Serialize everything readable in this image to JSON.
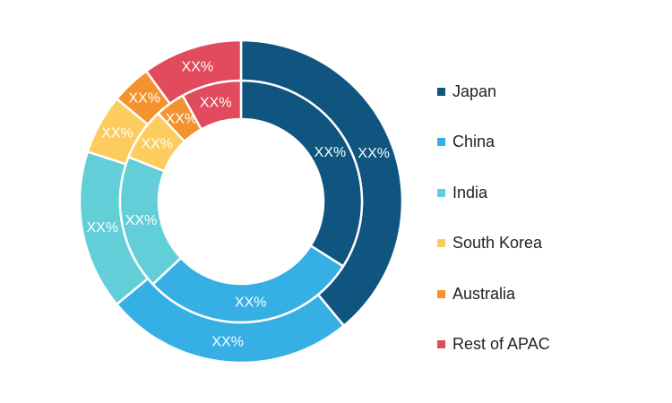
{
  "chart_data": {
    "type": "donut",
    "categories": [
      "Japan",
      "China",
      "India",
      "South Korea",
      "Australia",
      "Rest of APAC"
    ],
    "colors": [
      "#0f5580",
      "#36afe4",
      "#62cfd8",
      "#fccd5e",
      "#f4922e",
      "#e24a5d"
    ],
    "rings": [
      {
        "name": "",
        "values": [
          39,
          25,
          16,
          6,
          4,
          10
        ],
        "labels": [
          "XX%",
          "XX%",
          "XX%",
          "XX%",
          "XX%",
          "XX%"
        ]
      },
      {
        "name": "",
        "values": [
          34,
          29,
          18,
          7,
          4,
          8
        ],
        "labels": [
          "XX%",
          "XX%",
          "XX%",
          "XX%",
          "XX%",
          "XX%"
        ]
      }
    ],
    "legend_position": "right"
  },
  "legend": {
    "items": [
      {
        "label": "Japan",
        "color": "#0f5580"
      },
      {
        "label": "China",
        "color": "#36afe4"
      },
      {
        "label": "India",
        "color": "#62cfd8"
      },
      {
        "label": "South Korea",
        "color": "#fccd5e"
      },
      {
        "label": "Australia",
        "color": "#f4922e"
      },
      {
        "label": "Rest of APAC",
        "color": "#e24a5d"
      }
    ]
  }
}
